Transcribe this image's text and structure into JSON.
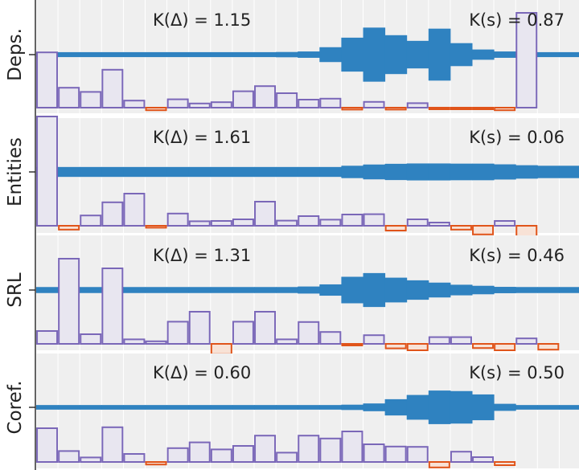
{
  "chart_data": {
    "type": "bar",
    "layers": 25,
    "colors": {
      "spindle": "#2f82c0",
      "bar_pos_stroke": "#7a67b8",
      "bar_pos_fill": "#e8e6f0",
      "bar_neg_stroke": "#e0541a",
      "bar_neg_fill": "#f8e2d6",
      "panel_bg": "#efefef",
      "grid": "#ffffff",
      "axis": "#222222"
    },
    "panels": [
      {
        "name": "Deps.",
        "k_delta": "K(Δ) = 1.15",
        "k_s": "K(s) = 0.87",
        "spindle": [
          0.14,
          0.14,
          0.14,
          0.14,
          0.14,
          0.14,
          0.14,
          0.14,
          0.14,
          0.14,
          0.14,
          0.15,
          0.18,
          0.42,
          0.96,
          1.53,
          1.1,
          0.78,
          1.47,
          0.65,
          0.29,
          0.18,
          0.14,
          0.14,
          0.14
        ],
        "bars": [
          1.72,
          0.62,
          0.49,
          1.18,
          0.22,
          -0.08,
          0.26,
          0.13,
          0.17,
          0.51,
          0.67,
          0.45,
          0.25,
          0.28,
          -0.06,
          0.18,
          -0.06,
          0.14,
          -0.04,
          -0.05,
          -0.04,
          -0.08,
          2.95,
          0.0,
          0.0
        ]
      },
      {
        "name": "Entities",
        "k_delta": "K(Δ) = 1.61",
        "k_s": "K(s) = 0.06",
        "spindle": [
          0.28,
          0.28,
          0.28,
          0.28,
          0.28,
          0.28,
          0.28,
          0.28,
          0.28,
          0.28,
          0.28,
          0.28,
          0.28,
          0.28,
          0.35,
          0.42,
          0.46,
          0.48,
          0.48,
          0.47,
          0.47,
          0.43,
          0.38,
          0.35,
          0.35
        ],
        "bars": [
          3.4,
          -0.12,
          0.32,
          0.73,
          1.0,
          -0.06,
          0.38,
          0.14,
          0.15,
          0.2,
          0.75,
          0.16,
          0.3,
          0.19,
          0.35,
          0.36,
          -0.15,
          0.2,
          0.1,
          -0.12,
          -0.27,
          0.15,
          -0.4,
          0.0,
          0.0
        ]
      },
      {
        "name": "SRL",
        "k_delta": "K(Δ) = 1.31",
        "k_s": "K(s) = 0.46",
        "spindle": [
          0.17,
          0.17,
          0.17,
          0.17,
          0.17,
          0.17,
          0.17,
          0.17,
          0.17,
          0.17,
          0.17,
          0.17,
          0.2,
          0.32,
          0.75,
          0.96,
          0.7,
          0.55,
          0.42,
          0.3,
          0.24,
          0.18,
          0.17,
          0.17,
          0.17
        ],
        "bars": [
          0.4,
          2.65,
          0.3,
          2.35,
          0.14,
          0.08,
          0.69,
          1.0,
          -0.32,
          0.69,
          1.0,
          0.14,
          0.68,
          0.37,
          -0.05,
          0.27,
          -0.14,
          -0.2,
          0.21,
          0.21,
          -0.13,
          -0.2,
          0.17,
          -0.18,
          0.0
        ]
      },
      {
        "name": "Coref.",
        "k_delta": "K(Δ) = 0.60",
        "k_s": "K(s) = 0.50",
        "spindle": [
          0.13,
          0.13,
          0.13,
          0.13,
          0.13,
          0.13,
          0.13,
          0.13,
          0.13,
          0.13,
          0.13,
          0.13,
          0.13,
          0.13,
          0.15,
          0.22,
          0.46,
          0.7,
          0.95,
          0.92,
          0.73,
          0.2,
          0.13,
          0.13,
          0.13
        ],
        "bars": [
          1.05,
          0.34,
          0.14,
          1.08,
          0.25,
          -0.08,
          0.43,
          0.61,
          0.39,
          0.5,
          0.82,
          0.29,
          0.82,
          0.73,
          0.95,
          0.55,
          0.48,
          0.47,
          -0.17,
          0.32,
          0.15,
          -0.1,
          0.0,
          0.0,
          0.0
        ]
      }
    ]
  }
}
